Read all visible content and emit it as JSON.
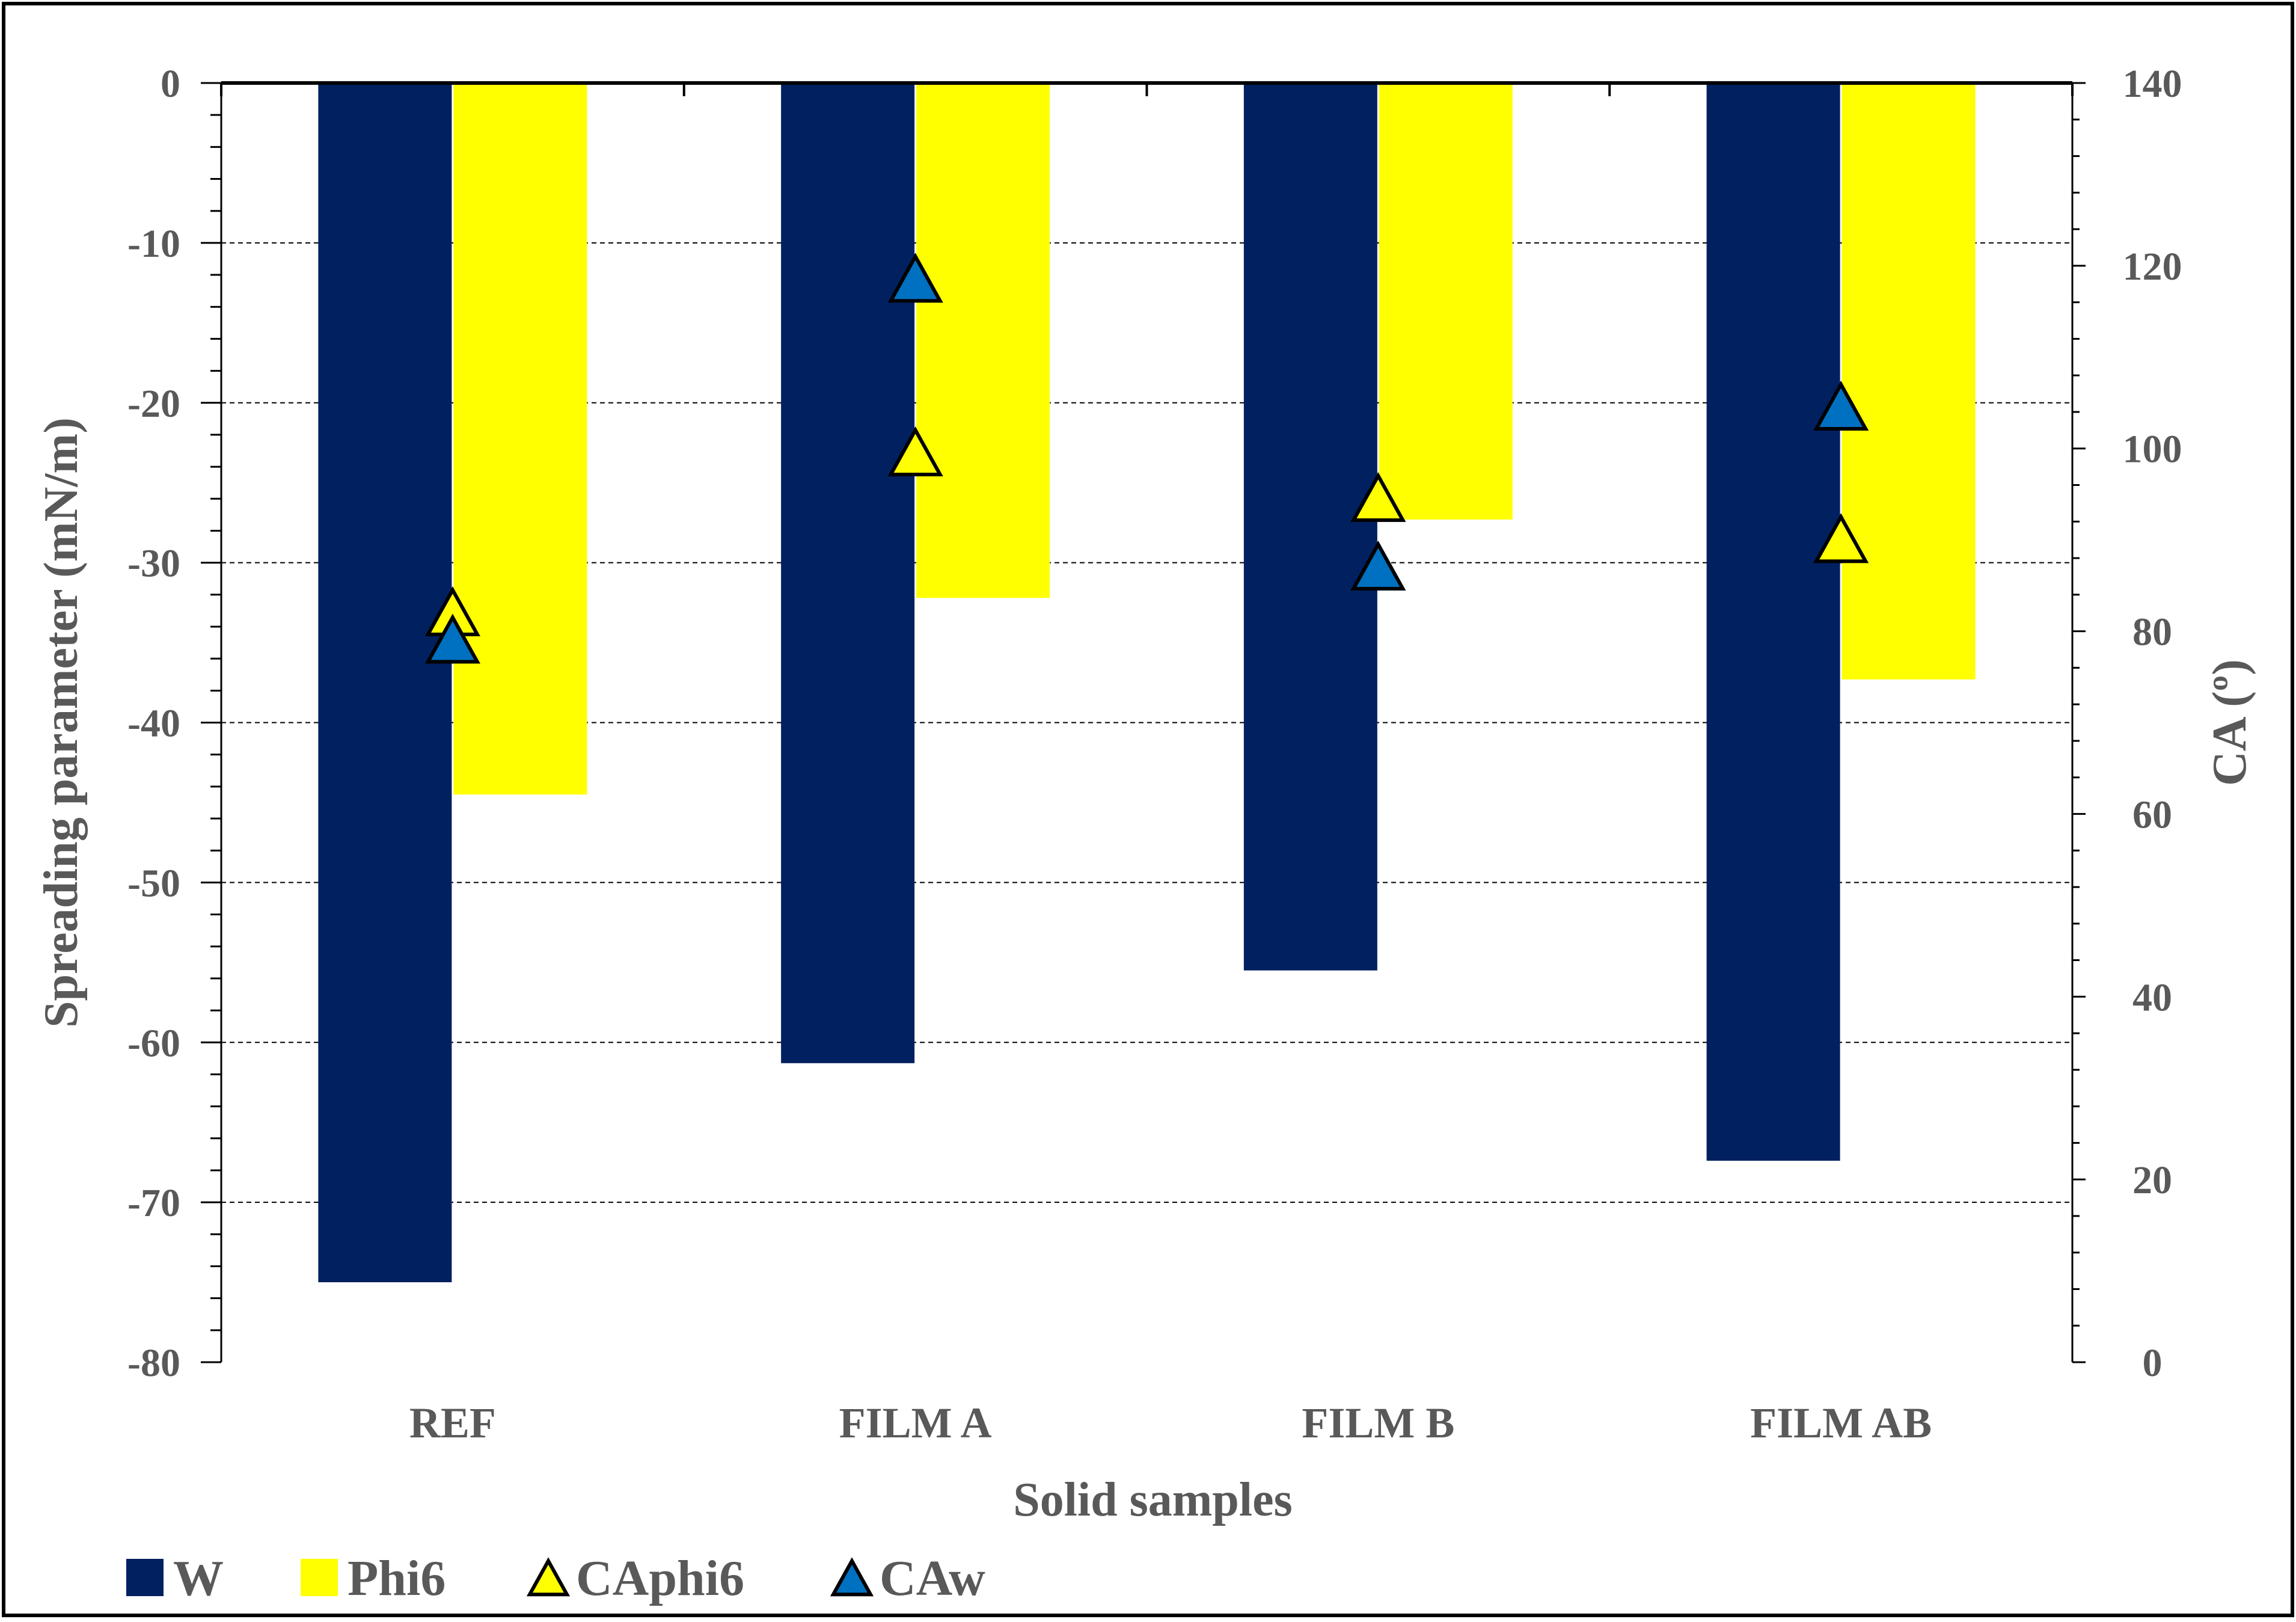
{
  "chart_data": {
    "type": "bar",
    "xlabel": "Solid samples",
    "ylabel": "Spreading parameter (mN/m)",
    "y2label": "CA (º)",
    "categories": [
      "REF",
      "FILM A",
      "FILM B",
      "FILM AB"
    ],
    "ylim": [
      -80,
      0
    ],
    "y2lim": [
      0,
      140
    ],
    "yticks": [
      0,
      -10,
      -20,
      -30,
      -40,
      -50,
      -60,
      -70,
      -80
    ],
    "y2ticks": [
      0,
      20,
      40,
      60,
      80,
      100,
      120,
      140
    ],
    "grid": true,
    "legend_position": "bottom",
    "series": [
      {
        "name": "W",
        "type": "bar",
        "axis": "left",
        "color": "#002060",
        "values": [
          -75.0,
          -61.3,
          -55.5,
          -67.4
        ]
      },
      {
        "name": "Phi6",
        "type": "bar",
        "axis": "left",
        "color": "#FFFF00",
        "values": [
          -44.5,
          -32.2,
          -27.3,
          -37.3
        ]
      },
      {
        "name": "CAphi6",
        "type": "marker",
        "marker": "triangle",
        "axis": "right",
        "color": "#FFFF00",
        "values": [
          81.5,
          99.0,
          94.0,
          89.5
        ]
      },
      {
        "name": "CAw",
        "type": "marker",
        "marker": "triangle",
        "axis": "right",
        "color": "#0070C0",
        "values": [
          78.5,
          118.0,
          86.5,
          104.0
        ]
      }
    ]
  }
}
